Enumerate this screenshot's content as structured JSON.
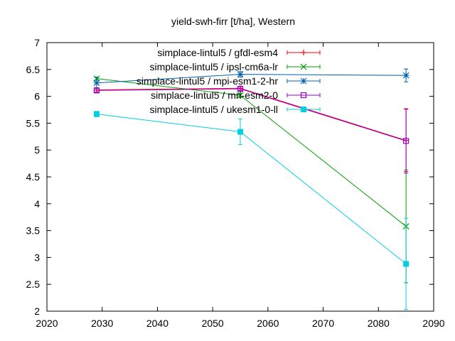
{
  "chart_data": {
    "type": "line",
    "title": "yield-swh-firr [t/ha], Western",
    "xlabel": "",
    "ylabel": "",
    "xlim": [
      2020,
      2090
    ],
    "ylim": [
      2,
      7
    ],
    "xticks": [
      2020,
      2030,
      2040,
      2050,
      2060,
      2070,
      2080,
      2090
    ],
    "yticks": [
      2,
      2.5,
      3,
      3.5,
      4,
      4.5,
      5,
      5.5,
      6,
      6.5,
      7
    ],
    "grid": false,
    "legend_position": "top-right",
    "series": [
      {
        "name": "simplace-lintul5 / gfdl-esm4",
        "color": "#ff0000",
        "marker": "plus",
        "x": [
          2029,
          2055,
          2085
        ],
        "y": [
          6.12,
          6.15,
          5.18
        ],
        "yerr": [
          0.04,
          0.04,
          0.58
        ]
      },
      {
        "name": "simplace-lintul5 / ipsl-cm6a-lr",
        "color": "#00a000",
        "marker": "cross",
        "x": [
          2029,
          2055,
          2085
        ],
        "y": [
          6.33,
          6.02,
          3.58
        ],
        "yerr": [
          0.03,
          0.04,
          1.05
        ]
      },
      {
        "name": "simplace-lintul5 / mpi-esm1-2-hr",
        "color": "#0060ad",
        "marker": "star",
        "x": [
          2029,
          2055,
          2085
        ],
        "y": [
          6.25,
          6.41,
          6.39
        ],
        "yerr": [
          0.1,
          0.05,
          0.12
        ]
      },
      {
        "name": "simplace-lintul5 / mri-esm2-0",
        "color": "#9400d3",
        "marker": "open-square",
        "x": [
          2029,
          2055,
          2085
        ],
        "y": [
          6.11,
          6.14,
          5.17
        ],
        "yerr": [
          0.04,
          0.04,
          0.6
        ]
      },
      {
        "name": "simplace-lintul5 / ukesm1-0-ll",
        "color": "#00d0e0",
        "marker": "filled-square",
        "x": [
          2029,
          2055,
          2085
        ],
        "y": [
          5.67,
          5.34,
          2.88
        ],
        "yerr": [
          0.05,
          0.24,
          0.85
        ]
      }
    ]
  }
}
